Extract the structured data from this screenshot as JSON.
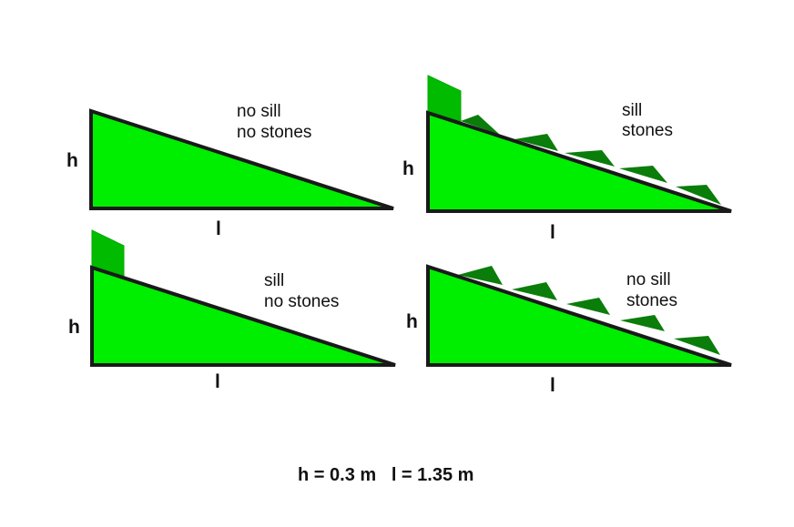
{
  "panels": [
    {
      "id": "no-sill-no-stones",
      "line1": "no sill",
      "line2": "no stones",
      "h_label": "h",
      "l_label": "l",
      "sill": false,
      "stones": false
    },
    {
      "id": "sill-stones",
      "line1": "sill",
      "line2": "stones",
      "h_label": "h",
      "l_label": "l",
      "sill": true,
      "stones": true
    },
    {
      "id": "sill-no-stones",
      "line1": "sill",
      "line2": "no stones",
      "h_label": "h",
      "l_label": "l",
      "sill": true,
      "stones": false
    },
    {
      "id": "no-sill-stones",
      "line1": "no sill",
      "line2": "stones",
      "h_label": "h",
      "l_label": "l",
      "sill": false,
      "stones": true
    }
  ],
  "footer": {
    "text": "h = 0.3 m   l = 1.35 m"
  },
  "colors": {
    "ramp_fill": "#00ee00",
    "sill_fill": "#00bb00",
    "stone_fill": "#0a7d0a",
    "outline": "#1a1a1a"
  }
}
